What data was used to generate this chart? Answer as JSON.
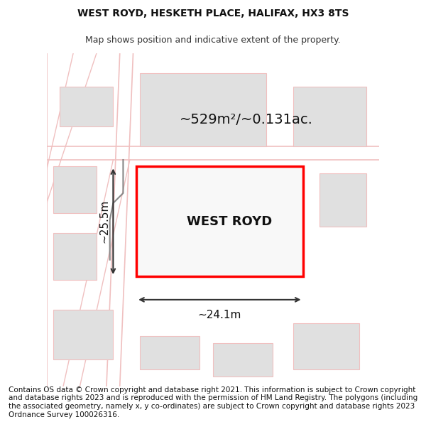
{
  "title": "WEST ROYD, HESKETH PLACE, HALIFAX, HX3 8TS",
  "subtitle": "Map shows position and indicative extent of the property.",
  "property_label": "WEST ROYD",
  "area_label": "~529m²/~0.131ac.",
  "width_label": "~24.1m",
  "height_label": "~25.5m",
  "footer": "Contains OS data © Crown copyright and database right 2021. This information is subject to Crown copyright and database rights 2023 and is reproduced with the permission of HM Land Registry. The polygons (including the associated geometry, namely x, y co-ordinates) are subject to Crown copyright and database rights 2023 Ordnance Survey 100026316.",
  "bg_color": "#ffffff",
  "map_bg": "#f5f5f5",
  "building_color": "#d8d8d8",
  "road_outline_color": "#f0c0c0",
  "property_border_color": "#ff0000",
  "property_fill": "#ffffff",
  "dim_line_color": "#333333",
  "title_fontsize": 10,
  "subtitle_fontsize": 9,
  "label_fontsize": 14,
  "area_fontsize": 16,
  "footer_fontsize": 7.5
}
